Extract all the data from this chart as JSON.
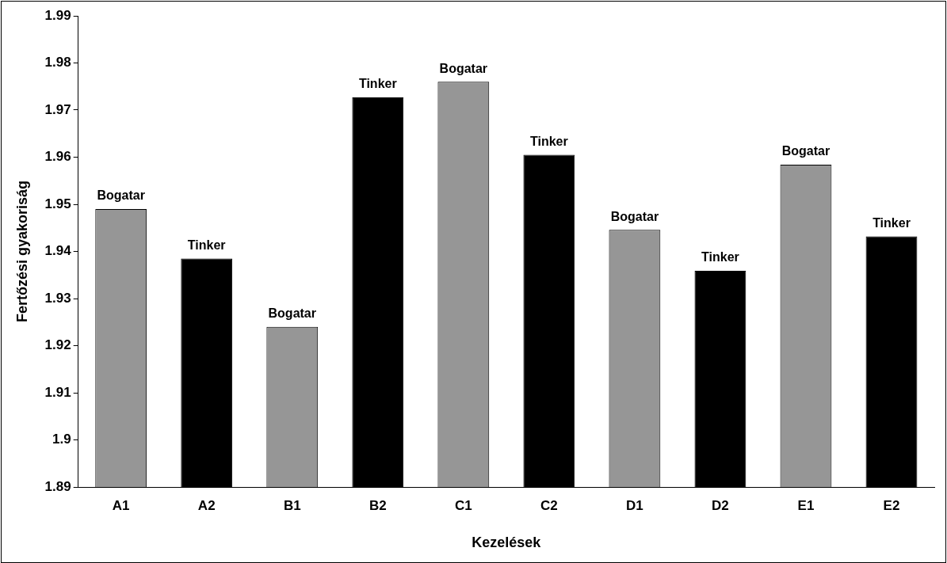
{
  "chart_data": {
    "type": "bar",
    "xlabel": "Kezelések",
    "ylabel": "Fertőzési gyakoriság",
    "categories": [
      "A1",
      "A2",
      "B1",
      "B2",
      "C1",
      "C2",
      "D1",
      "D2",
      "E1",
      "E2"
    ],
    "values": [
      1.949,
      1.9385,
      1.924,
      1.9727,
      1.976,
      1.9605,
      1.9446,
      1.9359,
      1.9584,
      1.9432
    ],
    "colors": [
      "#969696",
      "#000000",
      "#969696",
      "#000000",
      "#969696",
      "#000000",
      "#969696",
      "#000000",
      "#969696",
      "#000000"
    ],
    "ylim": [
      1.89,
      1.99
    ],
    "yticks": [
      1.89,
      1.9,
      1.91,
      1.92,
      1.93,
      1.94,
      1.95,
      1.96,
      1.97,
      1.98,
      1.99
    ],
    "annotations": [
      {
        "text": "Bogatar",
        "x": "A1",
        "y": 1.949
      },
      {
        "text": "Tinker",
        "x": "A2",
        "y": 1.9385
      },
      {
        "text": "Bogatar",
        "x": "B1",
        "y": 1.924
      },
      {
        "text": "Tinker",
        "x": "B2",
        "y": 1.9727
      },
      {
        "text": "Bogatar",
        "x": "C1",
        "y": 1.976
      },
      {
        "text": "Tinker",
        "x": "C2",
        "y": 1.9605
      },
      {
        "text": "Bogatar",
        "x": "D1",
        "y": 1.9446
      },
      {
        "text": "Tinker",
        "x": "D2",
        "y": 1.9359
      },
      {
        "text": "Bogatar",
        "x": "E1",
        "y": 1.9584
      },
      {
        "text": "Tinker",
        "x": "E2",
        "y": 1.9432
      }
    ],
    "grid": false,
    "legend": false
  }
}
